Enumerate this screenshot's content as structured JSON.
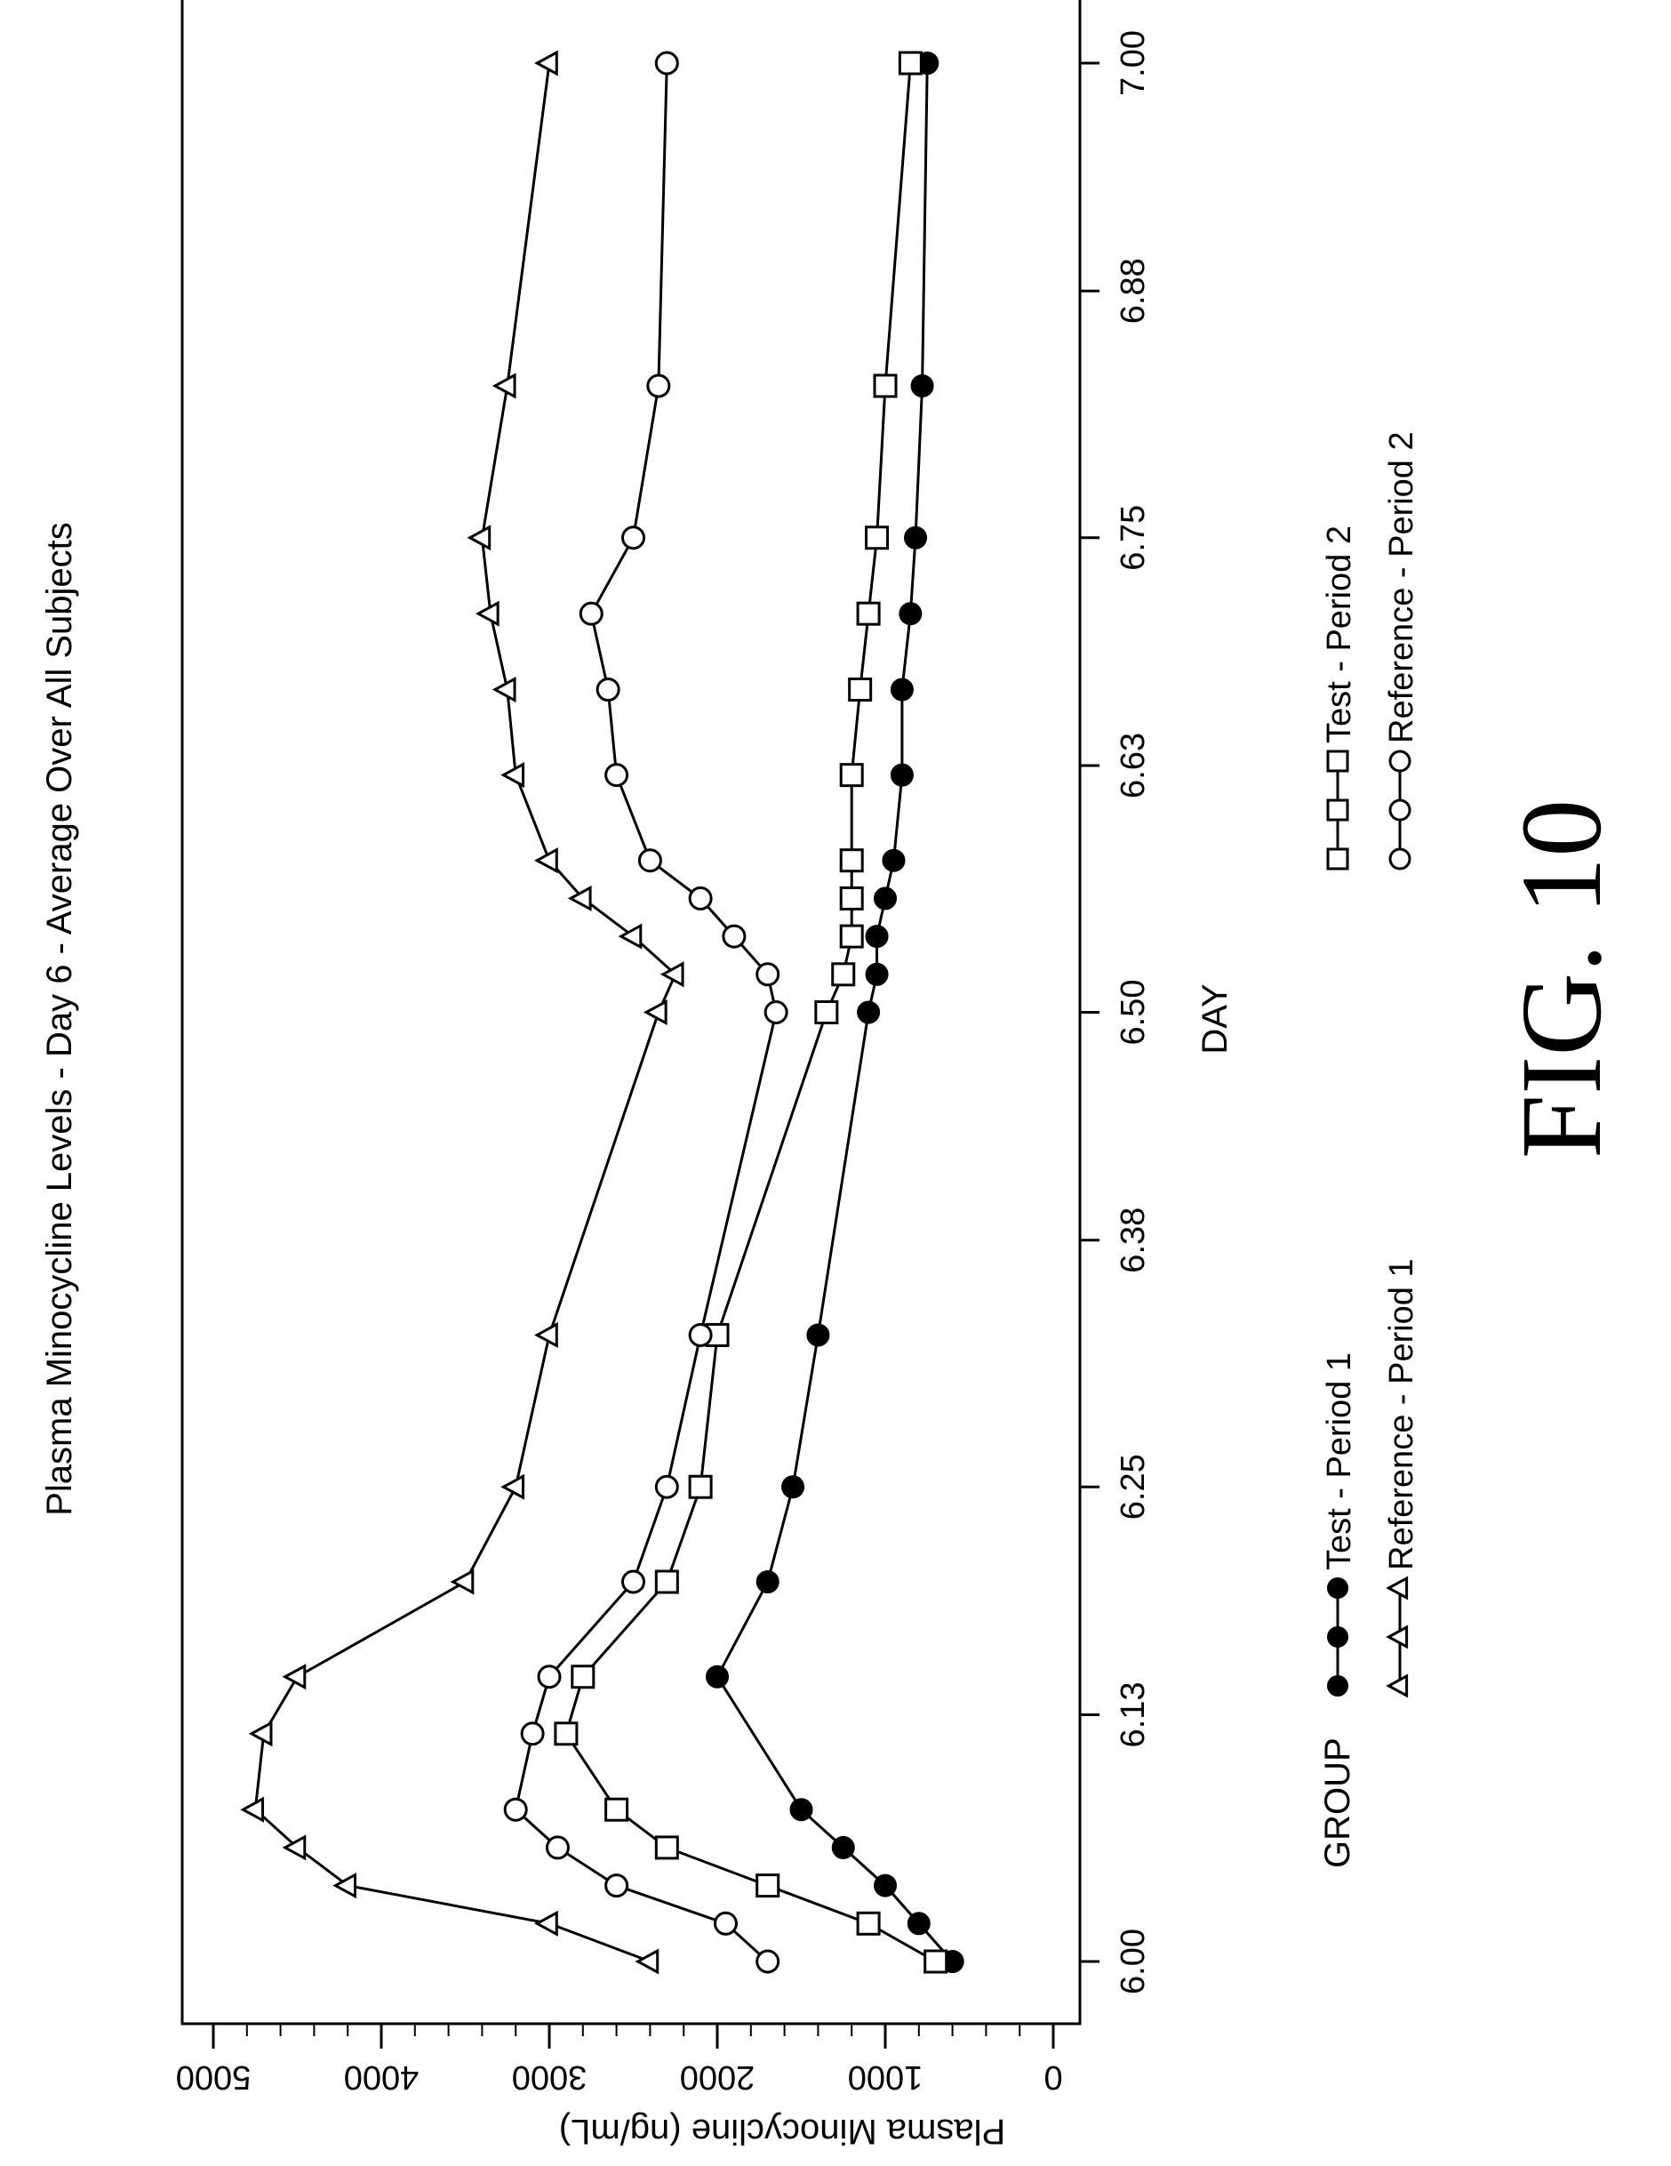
{
  "chart_data": {
    "type": "line",
    "title": "Plasma Minocycline Levels - Day 6 - Average Over All Subjects",
    "xlabel": "DAY",
    "ylabel": "Plasma Minocycline (ng/mL)",
    "xlim": [
      6.0,
      7.0
    ],
    "ylim": [
      0,
      5000
    ],
    "x_ticks": [
      6.0,
      6.13,
      6.25,
      6.38,
      6.5,
      6.63,
      6.75,
      6.88,
      7.0
    ],
    "x_tick_labels": [
      "6.00",
      "6.13",
      "6.25",
      "6.38",
      "6.50",
      "6.63",
      "6.75",
      "6.88",
      "7.00"
    ],
    "y_ticks": [
      0,
      1000,
      2000,
      3000,
      4000,
      5000
    ],
    "y_tick_labels": [
      "0",
      "1000",
      "2000",
      "3000",
      "4000",
      "5000"
    ],
    "grid": false,
    "orientation": "rotated-90-ccw",
    "legend": {
      "title": "GROUP",
      "placement": "bottom"
    },
    "series": [
      {
        "name": "Test - Period 1",
        "marker": "filled-circle",
        "x": [
          6.0,
          6.02,
          6.04,
          6.06,
          6.08,
          6.15,
          6.2,
          6.25,
          6.33,
          6.5,
          6.52,
          6.54,
          6.56,
          6.58,
          6.625,
          6.67,
          6.71,
          6.75,
          6.83,
          7.0
        ],
        "y": [
          600,
          800,
          1000,
          1250,
          1500,
          2000,
          1700,
          1550,
          1400,
          1100,
          1050,
          1050,
          1000,
          950,
          900,
          900,
          850,
          820,
          780,
          750
        ]
      },
      {
        "name": "Reference - Period 1",
        "marker": "open-triangle",
        "x": [
          6.0,
          6.02,
          6.04,
          6.06,
          6.08,
          6.12,
          6.15,
          6.2,
          6.25,
          6.33,
          6.5,
          6.52,
          6.54,
          6.56,
          6.58,
          6.625,
          6.67,
          6.71,
          6.75,
          6.83,
          7.0
        ],
        "y": [
          2400,
          3000,
          4200,
          4500,
          4750,
          4700,
          4500,
          3500,
          3200,
          3000,
          2350,
          2250,
          2500,
          2800,
          3000,
          3200,
          3250,
          3350,
          3400,
          3250,
          3000
        ]
      },
      {
        "name": "Test - Period 2",
        "marker": "open-square",
        "x": [
          6.0,
          6.02,
          6.04,
          6.06,
          6.08,
          6.12,
          6.15,
          6.2,
          6.25,
          6.33,
          6.5,
          6.52,
          6.54,
          6.56,
          6.58,
          6.625,
          6.67,
          6.71,
          6.75,
          6.83,
          7.0
        ],
        "y": [
          700,
          1100,
          1700,
          2300,
          2600,
          2900,
          2800,
          2300,
          2100,
          2000,
          1350,
          1250,
          1200,
          1200,
          1200,
          1200,
          1150,
          1100,
          1050,
          1000,
          850
        ]
      },
      {
        "name": "Reference - Period 2",
        "marker": "open-circle",
        "x": [
          6.0,
          6.02,
          6.04,
          6.06,
          6.08,
          6.12,
          6.15,
          6.2,
          6.25,
          6.33,
          6.5,
          6.52,
          6.54,
          6.56,
          6.58,
          6.625,
          6.67,
          6.71,
          6.75,
          6.83,
          7.0
        ],
        "y": [
          1700,
          1950,
          2600,
          2950,
          3200,
          3100,
          3000,
          2500,
          2300,
          2100,
          1650,
          1700,
          1900,
          2100,
          2400,
          2600,
          2650,
          2750,
          2500,
          2350,
          2300
        ]
      }
    ]
  },
  "figure_label": "FIG. 10"
}
